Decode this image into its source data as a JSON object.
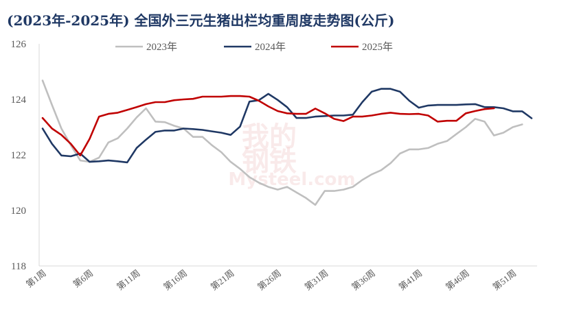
{
  "title": "(2023年-2025年) 全国外三元生猪出栏均重周度走势图(公斤)",
  "watermark": {
    "line1": "我的",
    "line2": "钢铁",
    "line3": "Mysteel.com"
  },
  "chart_data": {
    "type": "line",
    "title": "(2023年-2025年) 全国外三元生猪出栏均重周度走势图(公斤)",
    "ylim": [
      118,
      126
    ],
    "yticks": [
      118,
      120,
      122,
      124,
      126
    ],
    "xlim": [
      1,
      53
    ],
    "xticks": [
      1,
      6,
      11,
      16,
      21,
      26,
      31,
      36,
      41,
      46,
      51
    ],
    "xtick_labels": [
      "第1周",
      "第6周",
      "第11周",
      "第16周",
      "第21周",
      "第26周",
      "第31周",
      "第36周",
      "第41周",
      "第46周",
      "第51周"
    ],
    "grid": false,
    "legend": "top",
    "series": [
      {
        "name": "2023年",
        "color": "#bfbfbf",
        "values": [
          124.68,
          123.8,
          122.95,
          122.35,
          121.8,
          121.75,
          121.9,
          122.45,
          122.6,
          122.95,
          123.35,
          123.68,
          123.2,
          123.18,
          123.05,
          122.95,
          122.65,
          122.65,
          122.35,
          122.1,
          121.75,
          121.5,
          121.2,
          121.0,
          120.85,
          120.75,
          120.85,
          120.65,
          120.45,
          120.2,
          120.7,
          120.7,
          120.75,
          120.85,
          121.1,
          121.3,
          121.45,
          121.7,
          122.05,
          122.2,
          122.2,
          122.25,
          122.4,
          122.5,
          122.75,
          123.0,
          123.3,
          123.2,
          122.7,
          122.8,
          123.0,
          123.1
        ],
        "x_start": 1
      },
      {
        "name": "2024年",
        "color": "#1f3864",
        "values": [
          122.95,
          122.4,
          121.98,
          121.95,
          122.05,
          121.75,
          121.77,
          121.8,
          121.77,
          121.73,
          122.25,
          122.55,
          122.83,
          122.88,
          122.88,
          122.95,
          122.93,
          122.9,
          122.85,
          122.8,
          122.72,
          123.02,
          123.92,
          123.97,
          124.2,
          123.98,
          123.72,
          123.33,
          123.33,
          123.38,
          123.4,
          123.42,
          123.42,
          123.45,
          123.9,
          124.28,
          124.38,
          124.38,
          124.28,
          123.95,
          123.7,
          123.78,
          123.8,
          123.8,
          123.8,
          123.82,
          123.83,
          123.72,
          123.72,
          123.68,
          123.57,
          123.57,
          123.32
        ],
        "x_start": 1
      },
      {
        "name": "2025年",
        "color": "#c00000",
        "values": [
          123.33,
          122.95,
          122.72,
          122.4,
          121.98,
          122.58,
          123.38,
          123.48,
          123.52,
          123.62,
          123.72,
          123.83,
          123.9,
          123.9,
          123.97,
          124.0,
          124.02,
          124.1,
          124.1,
          124.1,
          124.12,
          124.12,
          124.1,
          123.95,
          123.75,
          123.58,
          123.5,
          123.48,
          123.48,
          123.67,
          123.5,
          123.3,
          123.22,
          123.38,
          123.38,
          123.42,
          123.48,
          123.52,
          123.48,
          123.47,
          123.48,
          123.42,
          123.2,
          123.23,
          123.23,
          123.5,
          123.58,
          123.65,
          123.68
        ],
        "x_start": 1
      }
    ]
  }
}
